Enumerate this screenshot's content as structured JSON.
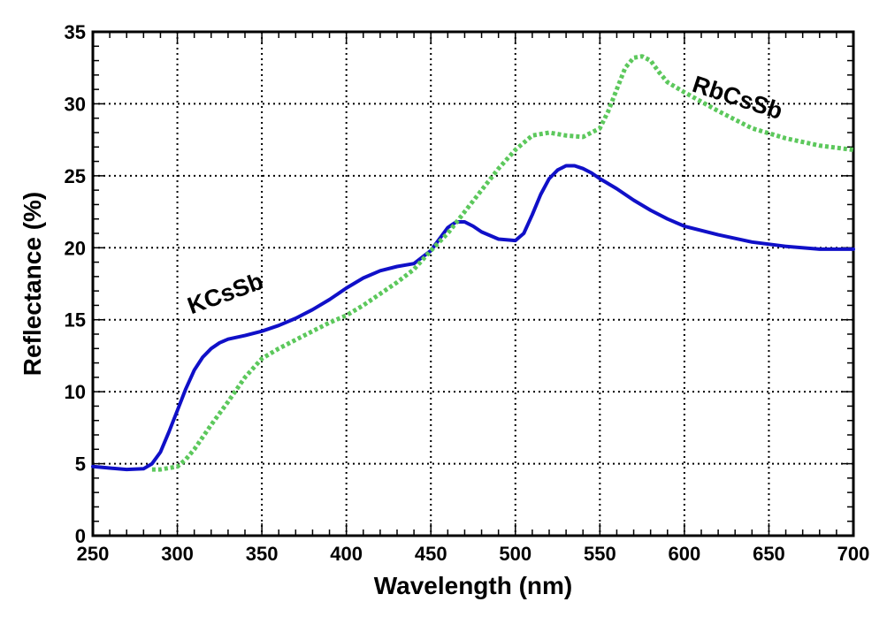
{
  "chart_data": {
    "type": "line",
    "title": "",
    "xlabel": "Wavelength (nm)",
    "ylabel": "Reflectance (%)",
    "xlim": [
      250,
      700
    ],
    "ylim": [
      0,
      35
    ],
    "xticks": [
      250,
      300,
      350,
      400,
      450,
      500,
      550,
      600,
      650,
      700
    ],
    "yticks": [
      0,
      5,
      10,
      15,
      20,
      25,
      30,
      35
    ],
    "xtick_labels": [
      "250",
      "300",
      "350",
      "400",
      "450",
      "500",
      "550",
      "600",
      "650",
      "700"
    ],
    "ytick_labels": [
      "0",
      "5",
      "10",
      "15",
      "20",
      "25",
      "30",
      "35"
    ],
    "grid": true,
    "legend": "none",
    "series": [
      {
        "name": "KCsSb",
        "color": "#1010c8",
        "style": "solid",
        "x": [
          250,
          260,
          270,
          280,
          285,
          290,
          295,
          300,
          305,
          310,
          315,
          320,
          325,
          330,
          340,
          350,
          360,
          370,
          380,
          390,
          400,
          410,
          420,
          430,
          440,
          450,
          455,
          460,
          465,
          470,
          475,
          480,
          490,
          500,
          505,
          510,
          515,
          520,
          525,
          530,
          535,
          540,
          545,
          550,
          560,
          570,
          580,
          590,
          600,
          620,
          640,
          660,
          680,
          700
        ],
        "y": [
          4.8,
          4.7,
          4.6,
          4.65,
          5.0,
          5.8,
          7.2,
          8.7,
          10.2,
          11.5,
          12.4,
          13.0,
          13.4,
          13.65,
          13.9,
          14.2,
          14.6,
          15.1,
          15.7,
          16.4,
          17.2,
          17.9,
          18.4,
          18.7,
          18.9,
          19.8,
          20.6,
          21.4,
          21.8,
          21.8,
          21.5,
          21.1,
          20.6,
          20.5,
          21.0,
          22.3,
          23.7,
          24.8,
          25.4,
          25.7,
          25.7,
          25.5,
          25.2,
          24.8,
          24.1,
          23.3,
          22.6,
          22.0,
          21.5,
          20.9,
          20.4,
          20.1,
          19.9,
          19.9
        ],
        "label": "KCsSb"
      },
      {
        "name": "RbCsSb",
        "color": "#5cc85c",
        "style": "dotted",
        "x": [
          285,
          290,
          300,
          305,
          310,
          320,
          330,
          340,
          350,
          360,
          370,
          380,
          390,
          400,
          410,
          420,
          430,
          440,
          450,
          460,
          470,
          480,
          490,
          500,
          510,
          520,
          530,
          540,
          550,
          555,
          560,
          565,
          570,
          575,
          580,
          585,
          590,
          600,
          620,
          640,
          660,
          680,
          700
        ],
        "y": [
          4.6,
          4.6,
          4.8,
          5.3,
          6.0,
          7.7,
          9.3,
          11.0,
          12.3,
          13.0,
          13.6,
          14.2,
          14.8,
          15.3,
          16.0,
          16.8,
          17.6,
          18.5,
          19.8,
          21.0,
          22.5,
          24.0,
          25.5,
          26.8,
          27.8,
          28.0,
          27.8,
          27.7,
          28.3,
          29.5,
          31.0,
          32.5,
          33.2,
          33.3,
          33.0,
          32.2,
          31.5,
          30.8,
          29.5,
          28.3,
          27.6,
          27.1,
          26.8
        ],
        "label": "RbCsSb"
      }
    ],
    "annotations": [
      {
        "text": "KCsSb",
        "x": 330,
        "y": 16.3,
        "rotation": -20
      },
      {
        "text": "RbCsSb",
        "x": 630,
        "y": 29.9,
        "rotation": 18
      }
    ]
  }
}
